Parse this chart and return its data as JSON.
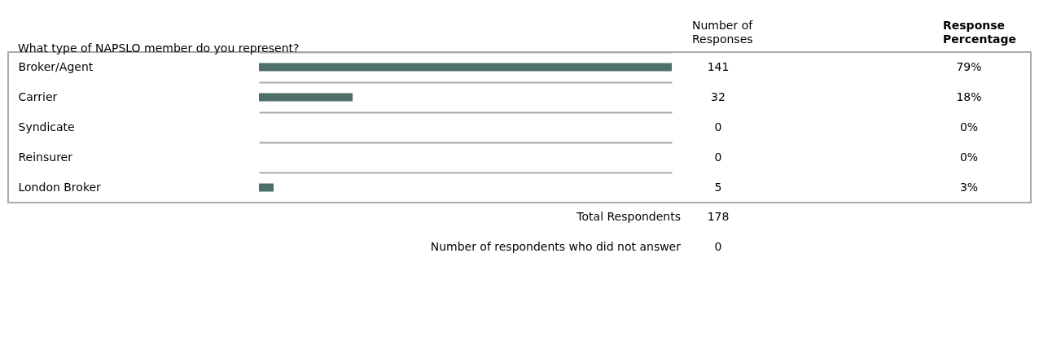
{
  "chart_data": {
    "type": "bar",
    "orientation": "horizontal",
    "title": "What type of NAPSLO member do you represent?",
    "categories": [
      "Broker/Agent",
      "Carrier",
      "Syndicate",
      "Reinsurer",
      "London Broker"
    ],
    "values": [
      141,
      32,
      0,
      0,
      5
    ],
    "color": "#4f6f6a",
    "data_labels": true,
    "tick_labels": "y",
    "grid": "y",
    "annotations": [
      "Number of Responses",
      "Response Percentage",
      "Total Respondents",
      "178",
      "Number of respondents who did not answer",
      "0",
      "79%",
      "18%",
      "0%",
      "0%",
      "3%"
    ]
  }
}
